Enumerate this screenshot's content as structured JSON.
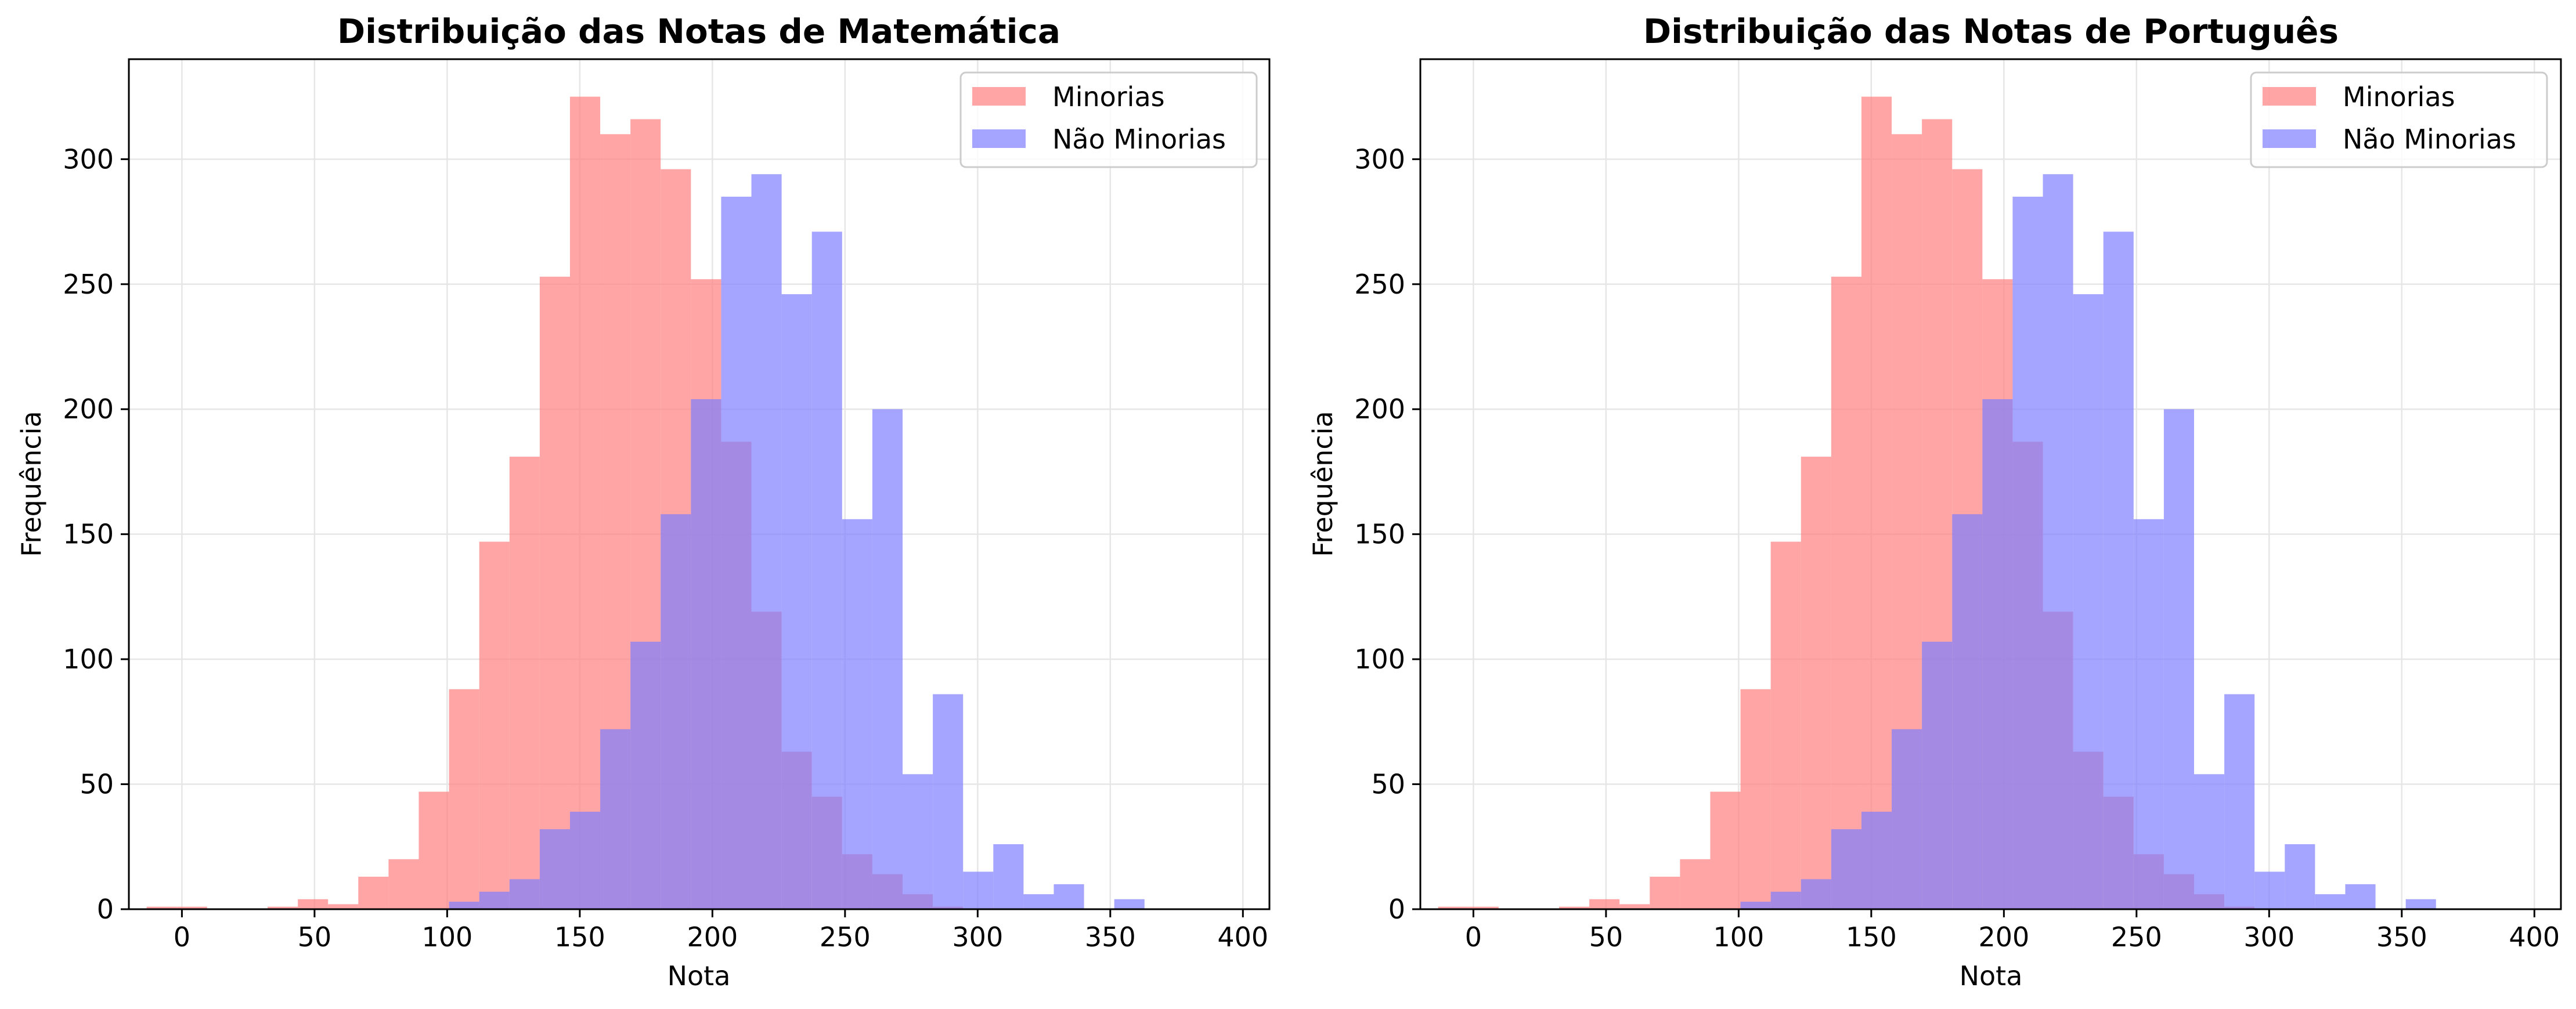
{
  "colors": {
    "minorias": "#ff7f7f",
    "nao_minorias": "#7f7fff",
    "grid": "#e6e6e6",
    "frame": "#000000"
  },
  "chart_data": [
    {
      "type": "bar",
      "title": "Distribuição das Notas de Matemática",
      "xlabel": "Nota",
      "ylabel": "Frequência",
      "xlim": [
        -20,
        410
      ],
      "ylim": [
        0,
        340
      ],
      "xticks": [
        0,
        50,
        100,
        150,
        200,
        250,
        300,
        350,
        400
      ],
      "yticks": [
        0,
        50,
        100,
        150,
        200,
        250,
        300
      ],
      "grid": true,
      "legend_position": "top-right",
      "bin_width": 22.8,
      "series": [
        {
          "name": "Minorias",
          "x": [
            3.8,
            26.6,
            49.4,
            72.2,
            95.0,
            117.8,
            140.6,
            163.4,
            186.2,
            209.0,
            231.8,
            254.6,
            277.4,
            300.2,
            323.0,
            345.8,
            368.6,
            391.4
          ],
          "values": [
            1,
            0,
            4,
            13,
            47,
            147,
            253,
            310,
            296,
            187,
            63,
            22,
            6,
            0,
            0,
            0,
            0,
            0
          ]
        },
        {
          "name": "Minorias",
          "x": [
            -7.6,
            15.2,
            38.0,
            60.8,
            83.6,
            106.4,
            129.2,
            152.0,
            174.8,
            197.6,
            220.4,
            243.2,
            266.0,
            288.8,
            311.6,
            334.4,
            357.2,
            380.0
          ],
          "values": [
            1,
            0,
            1,
            2,
            20,
            88,
            181,
            325,
            316,
            252,
            119,
            45,
            14,
            1,
            0,
            0,
            0,
            0
          ]
        },
        {
          "name": "Não Minorias",
          "x": [
            15.2,
            38.0,
            60.8,
            83.6,
            106.4,
            129.2,
            152.0,
            174.8,
            197.6,
            220.4,
            243.2,
            266.0,
            288.8,
            311.6,
            334.4,
            357.2,
            380.0,
            402.8
          ],
          "values": [
            0,
            0,
            0,
            0,
            3,
            12,
            39,
            107,
            204,
            294,
            271,
            200,
            86,
            26,
            10,
            4,
            0,
            0
          ]
        },
        {
          "name": "Não Minorias",
          "x": [
            3.8,
            26.6,
            49.4,
            72.2,
            95.0,
            117.8,
            140.6,
            163.4,
            186.2,
            209.0,
            231.8,
            254.6,
            277.4,
            300.2,
            323.0,
            345.8,
            368.6,
            391.4
          ],
          "values": [
            0,
            0,
            0,
            0,
            0,
            7,
            32,
            72,
            158,
            285,
            246,
            156,
            54,
            15,
            6,
            0,
            0,
            0
          ]
        }
      ]
    },
    {
      "type": "bar",
      "title": "Distribuição das Notas de Português",
      "xlabel": "Nota",
      "ylabel": "Frequência",
      "xlim": [
        -20,
        410
      ],
      "ylim": [
        0,
        340
      ],
      "xticks": [
        0,
        50,
        100,
        150,
        200,
        250,
        300,
        350,
        400
      ],
      "yticks": [
        0,
        50,
        100,
        150,
        200,
        250,
        300
      ],
      "grid": true,
      "legend_position": "top-right",
      "bin_width": 22.8,
      "series": [
        {
          "name": "Minorias",
          "x": [
            3.8,
            26.6,
            49.4,
            72.2,
            95.0,
            117.8,
            140.6,
            163.4,
            186.2,
            209.0,
            231.8,
            254.6,
            277.4,
            300.2,
            323.0,
            345.8,
            368.6,
            391.4
          ],
          "values": [
            1,
            0,
            4,
            13,
            47,
            147,
            253,
            310,
            296,
            187,
            63,
            22,
            6,
            0,
            0,
            0,
            0,
            0
          ]
        },
        {
          "name": "Minorias",
          "x": [
            -7.6,
            15.2,
            38.0,
            60.8,
            83.6,
            106.4,
            129.2,
            152.0,
            174.8,
            197.6,
            220.4,
            243.2,
            266.0,
            288.8,
            311.6,
            334.4,
            357.2,
            380.0
          ],
          "values": [
            1,
            0,
            1,
            2,
            20,
            88,
            181,
            325,
            316,
            252,
            119,
            45,
            14,
            1,
            0,
            0,
            0,
            0
          ]
        },
        {
          "name": "Não Minorias",
          "x": [
            15.2,
            38.0,
            60.8,
            83.6,
            106.4,
            129.2,
            152.0,
            174.8,
            197.6,
            220.4,
            243.2,
            266.0,
            288.8,
            311.6,
            334.4,
            357.2,
            380.0,
            402.8
          ],
          "values": [
            0,
            0,
            0,
            0,
            3,
            12,
            39,
            107,
            204,
            294,
            271,
            200,
            86,
            26,
            10,
            4,
            0,
            0
          ]
        },
        {
          "name": "Não Minorias",
          "x": [
            3.8,
            26.6,
            49.4,
            72.2,
            95.0,
            117.8,
            140.6,
            163.4,
            186.2,
            209.0,
            231.8,
            254.6,
            277.4,
            300.2,
            323.0,
            345.8,
            368.6,
            391.4
          ],
          "values": [
            0,
            0,
            0,
            0,
            0,
            7,
            32,
            72,
            158,
            285,
            246,
            156,
            54,
            15,
            6,
            0,
            0,
            0
          ]
        }
      ]
    }
  ]
}
